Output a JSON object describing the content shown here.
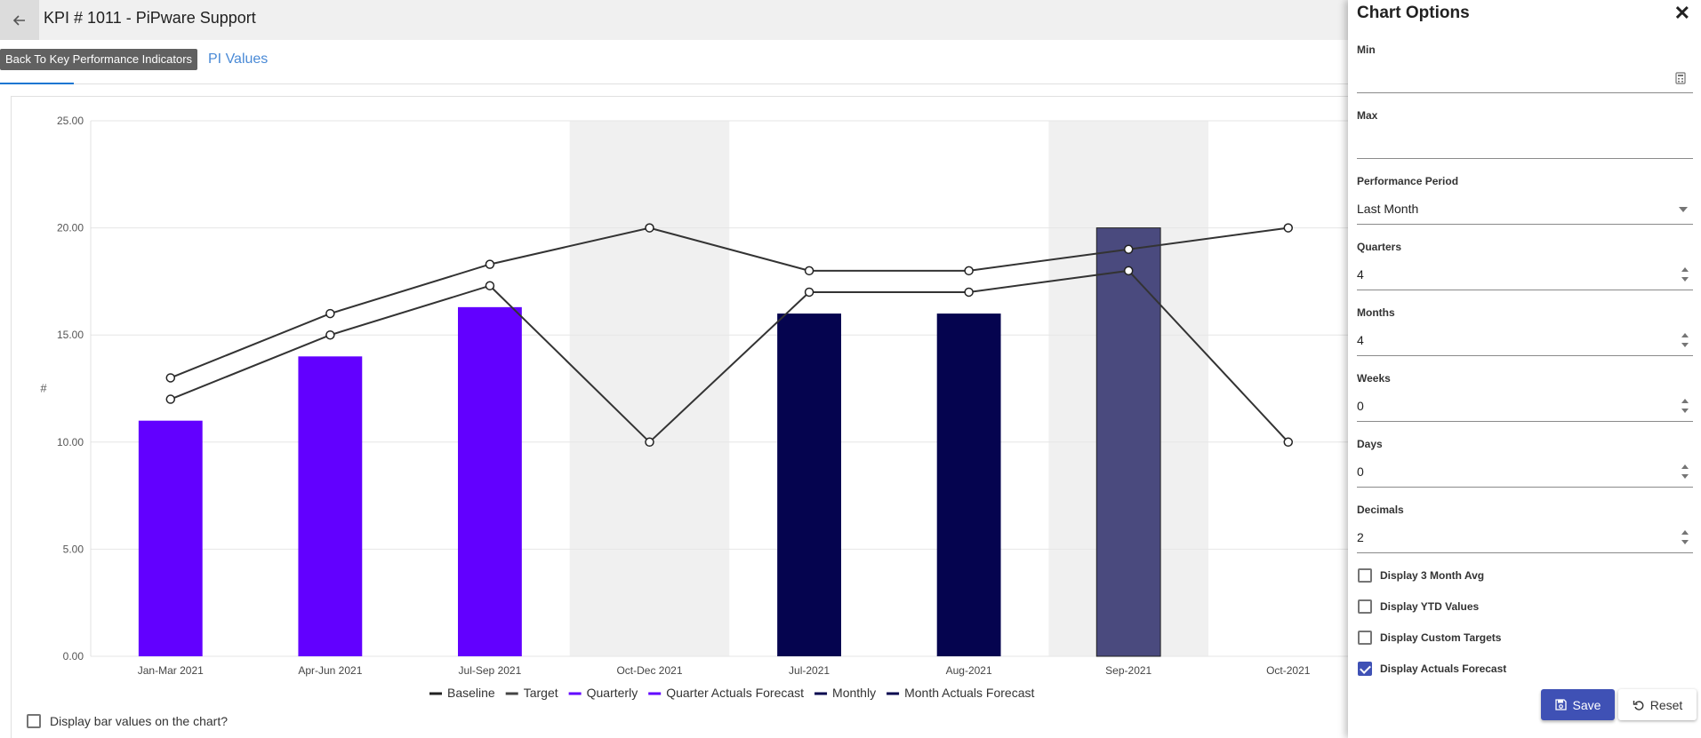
{
  "header": {
    "title": "KPI # 1011 - PiPware Support",
    "back_tooltip": "Back To Key Performance Indicators"
  },
  "tabs": {
    "kpi_values_label": "PI Values"
  },
  "options": {
    "title": "Chart Options",
    "fields": [
      {
        "label": "Min",
        "value": "",
        "control": "calculator"
      },
      {
        "label": "Max",
        "value": "",
        "control": "none"
      },
      {
        "label": "Performance Period",
        "value": "Last Month",
        "control": "dropdown"
      },
      {
        "label": "Quarters",
        "value": "4",
        "control": "spinner"
      },
      {
        "label": "Months",
        "value": "4",
        "control": "spinner"
      },
      {
        "label": "Weeks",
        "value": "0",
        "control": "spinner"
      },
      {
        "label": "Days",
        "value": "0",
        "control": "spinner"
      },
      {
        "label": "Decimals",
        "value": "2",
        "control": "spinner"
      }
    ],
    "checkboxes": [
      {
        "label": "Display 3 Month Avg",
        "checked": false
      },
      {
        "label": "Display YTD Values",
        "checked": false
      },
      {
        "label": "Display Custom Targets",
        "checked": false
      },
      {
        "label": "Display Actuals Forecast",
        "checked": true
      }
    ],
    "save_label": "Save",
    "reset_label": "Reset"
  },
  "bar_values_label": "Display bar values on the chart?",
  "colors": {
    "quarterly": "#6200ff",
    "monthly": "#05044f",
    "forecast_bar": "#4a4a7e",
    "line": "#333333",
    "shade": "#f0f0f0",
    "accent": "#3f51b5"
  },
  "chart_data": {
    "type": "bar",
    "ylabel": "#",
    "ylim": [
      0,
      25
    ],
    "yticks": [
      "0.00",
      "5.00",
      "10.00",
      "15.00",
      "20.00",
      "25.00"
    ],
    "categories": [
      "Jan-Mar 2021",
      "Apr-Jun 2021",
      "Jul-Sep 2021",
      "Oct-Dec 2021",
      "Jul-2021",
      "Aug-2021",
      "Sep-2021",
      "Oct-2021"
    ],
    "shaded_categories": [
      "Oct-Dec 2021",
      "Sep-2021"
    ],
    "bars": [
      {
        "category": "Jan-Mar 2021",
        "value": 11,
        "series": "Quarterly"
      },
      {
        "category": "Apr-Jun 2021",
        "value": 14,
        "series": "Quarterly"
      },
      {
        "category": "Jul-Sep 2021",
        "value": 16.3,
        "series": "Quarterly"
      },
      {
        "category": "Jul-2021",
        "value": 16,
        "series": "Monthly"
      },
      {
        "category": "Aug-2021",
        "value": 16,
        "series": "Monthly"
      },
      {
        "category": "Sep-2021",
        "value": 20,
        "series": "Month Actuals Forecast"
      }
    ],
    "lines": [
      {
        "values": [
          13,
          16,
          18.3,
          20,
          18,
          18,
          19,
          20
        ]
      },
      {
        "values": [
          12,
          15,
          17.3,
          10,
          17,
          17,
          18,
          10
        ]
      }
    ],
    "legend": [
      {
        "name": "Baseline",
        "color": "#222222"
      },
      {
        "name": "Target",
        "color": "#444444"
      },
      {
        "name": "Quarterly",
        "color": "#6200ff"
      },
      {
        "name": "Quarter Actuals Forecast",
        "color": "#6200ff"
      },
      {
        "name": "Monthly",
        "color": "#05044f"
      },
      {
        "name": "Month Actuals Forecast",
        "color": "#05044f"
      }
    ],
    "legend_position": "bottom"
  }
}
